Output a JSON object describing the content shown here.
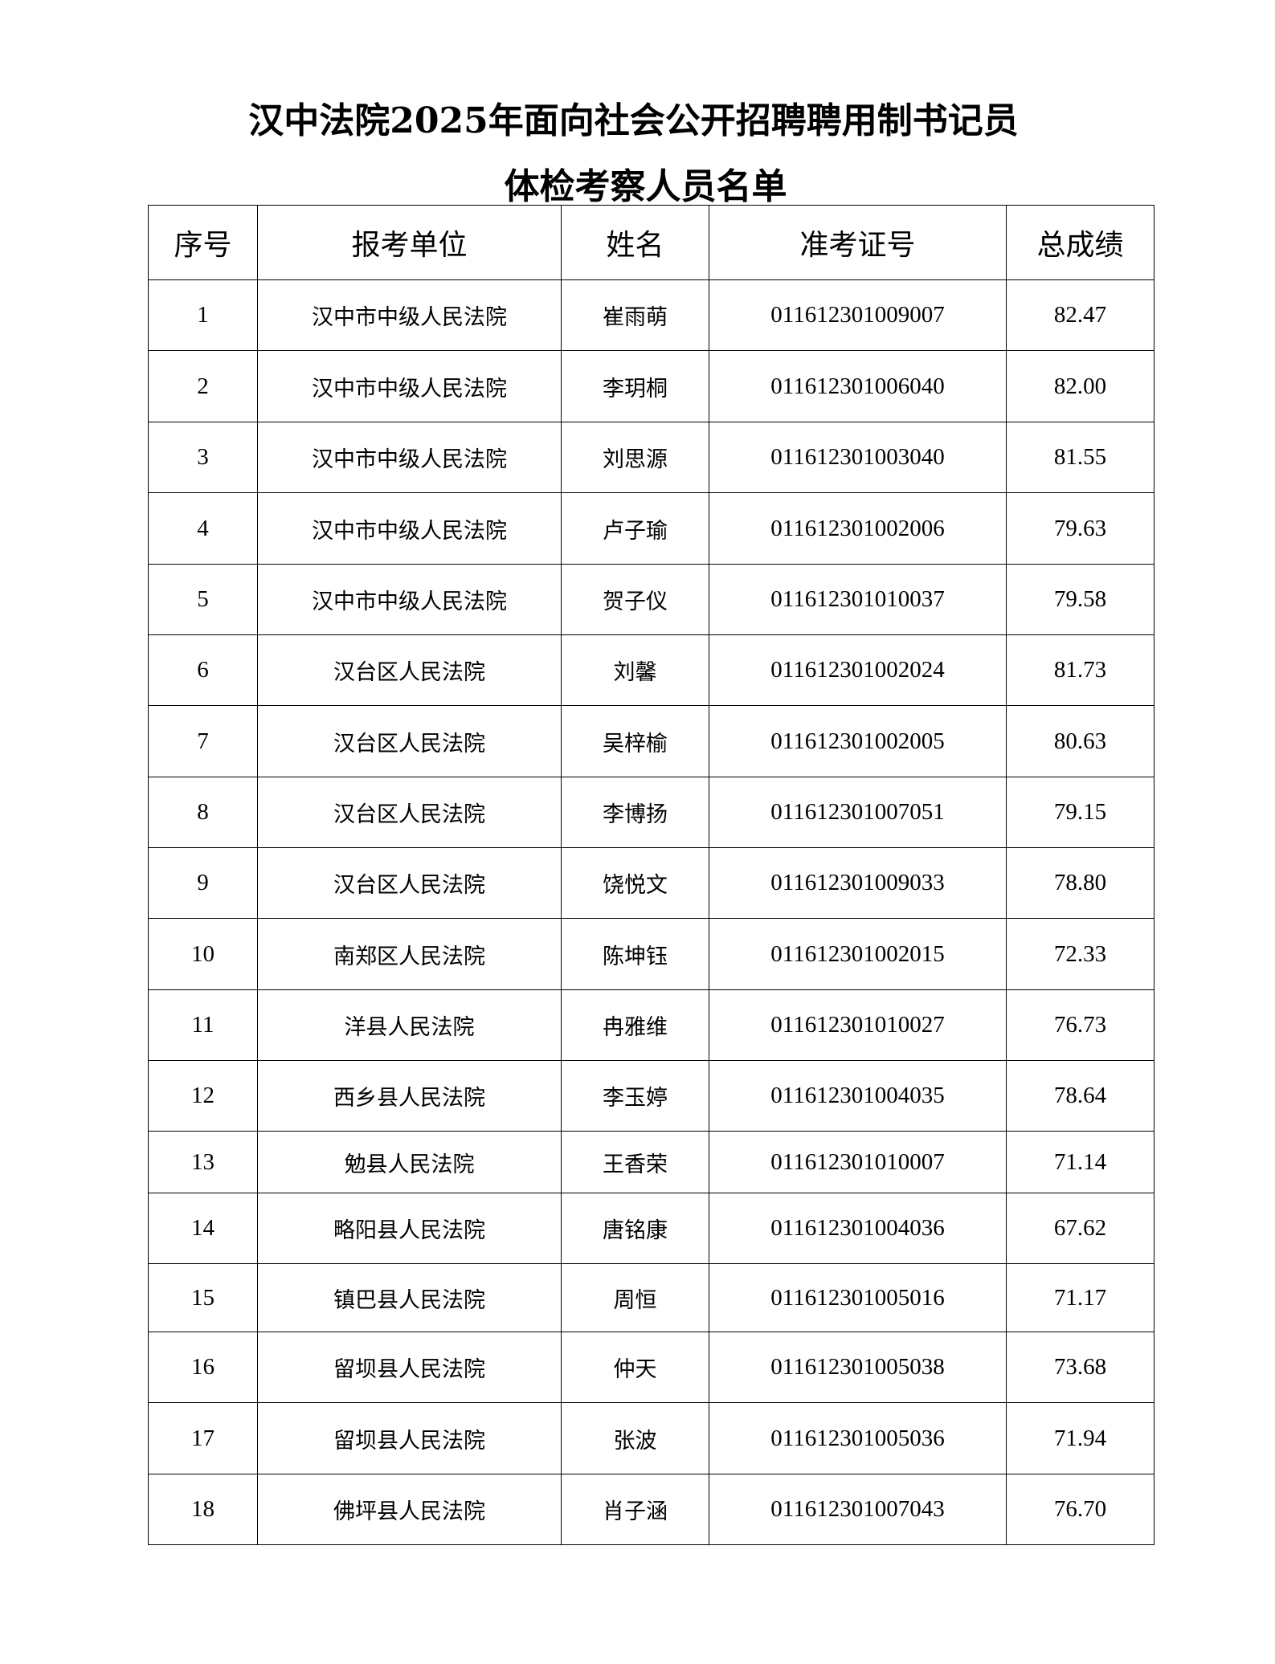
{
  "title_line1": "汉中法院2025年面向社会公开招聘聘用制书记员",
  "title_line2": "体检考察人员名单",
  "headers": [
    "序号",
    "报考单位",
    "姓名",
    "准考证号",
    "总成绩"
  ],
  "rows": [
    [
      "1",
      "汉中市中级人民法院",
      "崔雨萌",
      "011612301009007",
      "82.47"
    ],
    [
      "2",
      "汉中市中级人民法院",
      "李玥桐",
      "011612301006040",
      "82.00"
    ],
    [
      "3",
      "汉中市中级人民法院",
      "刘思源",
      "011612301003040",
      "81.55"
    ],
    [
      "4",
      "汉中市中级人民法院",
      "卢子瑜",
      "011612301002006",
      "79.63"
    ],
    [
      "5",
      "汉中市中级人民法院",
      "贺子仪",
      "011612301010037",
      "79.58"
    ],
    [
      "6",
      "汉台区人民法院",
      "刘馨",
      "011612301002024",
      "81.73"
    ],
    [
      "7",
      "汉台区人民法院",
      "吴梓榆",
      "011612301002005",
      "80.63"
    ],
    [
      "8",
      "汉台区人民法院",
      "李博扬",
      "011612301007051",
      "79.15"
    ],
    [
      "9",
      "汉台区人民法院",
      "饶悦文",
      "011612301009033",
      "78.80"
    ],
    [
      "10",
      "南郑区人民法院",
      "陈坤钰",
      "011612301002015",
      "72.33"
    ],
    [
      "11",
      "洋县人民法院",
      "冉雅维",
      "011612301010027",
      "76.73"
    ],
    [
      "12",
      "西乡县人民法院",
      "李玉婷",
      "011612301004035",
      "78.64"
    ],
    [
      "13",
      "勉县人民法院",
      "王香荣",
      "011612301010007",
      "71.14"
    ],
    [
      "14",
      "略阳县人民法院",
      "唐铭康",
      "011612301004036",
      "67.62"
    ],
    [
      "15",
      "镇巴县人民法院",
      "周恒",
      "011612301005016",
      "71.17"
    ],
    [
      "16",
      "留坝县人民法院",
      "仲天",
      "011612301005038",
      "73.68"
    ],
    [
      "17",
      "留坝县人民法院",
      "张波",
      "011612301005036",
      "71.94"
    ],
    [
      "18",
      "佛坪县人民法院",
      "肖子涵",
      "011612301007043",
      "76.70"
    ]
  ]
}
